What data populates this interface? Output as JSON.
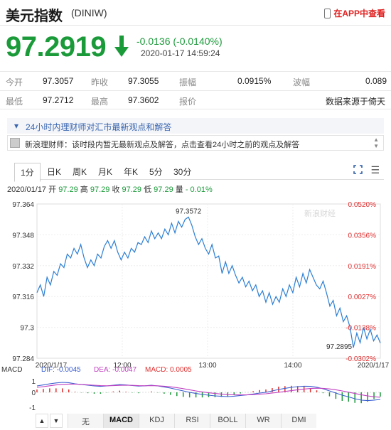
{
  "header": {
    "title": "美元指数",
    "code": "(DINIW)",
    "app_link": "在APP中查看"
  },
  "quote": {
    "price": "97.2919",
    "change": "-0.0136 (-0.0140%)",
    "timestamp": "2020-01-17  14:59:24"
  },
  "stats": {
    "open_label": "今开",
    "open": "97.3057",
    "prev_close_label": "昨收",
    "prev_close": "97.3055",
    "amplitude_label": "振幅",
    "amplitude": "0.0915%",
    "range_label": "波幅",
    "range": "0.089",
    "low_label": "最低",
    "low": "97.2712",
    "high_label": "最高",
    "high": "97.3602",
    "quote_label": "报价",
    "source": "数据来源于倚天"
  },
  "news": {
    "header": "24小时内理财师对汇市最新观点和解答",
    "item": "新浪理财师：该时段内暂无最新观点及解答，点击查看24小时之前的观点及解答"
  },
  "chart_tabs": [
    "1分",
    "日K",
    "周K",
    "月K",
    "年K",
    "5分",
    "30分"
  ],
  "summary": {
    "date": "2020/01/17",
    "open_label": "开",
    "open": "97.29",
    "high_label": "高",
    "high": "97.29",
    "close_label": "收",
    "close": "97.29",
    "low_label": "低",
    "low": "97.29",
    "vol_label": "量",
    "change": "- 0.01%"
  },
  "chart_data": {
    "type": "line",
    "title": "",
    "watermark": "新浪财经",
    "y_labels": [
      "97.364",
      "97.348",
      "97.332",
      "97.316",
      "97.3",
      "97.284"
    ],
    "pct_labels": [
      "0.0520%",
      "0.0356%",
      "0.0191%",
      "0.0027%",
      "-0.0138%",
      "-0.0302%"
    ],
    "x_labels": [
      "2020/1/17",
      "12:00",
      "13:00",
      "14:00",
      "2020/1/17"
    ],
    "ylim": [
      97.284,
      97.364
    ],
    "max_annotation": "97.3572",
    "min_annotation": "97.2895",
    "series": [
      {
        "values": [
          97.318,
          97.322,
          97.316,
          97.326,
          97.322,
          97.329,
          97.327,
          97.333,
          97.331,
          97.338,
          97.336,
          97.341,
          97.338,
          97.343,
          97.336,
          97.331,
          97.335,
          97.332,
          97.338,
          97.336,
          97.342,
          97.345,
          97.341,
          97.345,
          97.339,
          97.335,
          97.339,
          97.336,
          97.341,
          97.339,
          97.344,
          97.343,
          97.347,
          97.344,
          97.35,
          97.346,
          97.349,
          97.346,
          97.351,
          97.348,
          97.354,
          97.349,
          97.355,
          97.352,
          97.356,
          97.3572,
          97.353,
          97.347,
          97.343,
          97.346,
          97.341,
          97.338,
          97.343,
          97.336,
          97.337,
          97.328,
          97.334,
          97.328,
          97.332,
          97.327,
          97.323,
          97.326,
          97.321,
          97.324,
          97.319,
          97.322,
          97.316,
          97.319,
          97.313,
          97.318,
          97.312,
          97.316,
          97.313,
          97.32,
          97.316,
          97.322,
          97.318,
          97.326,
          97.321,
          97.328,
          97.323,
          97.33,
          97.326,
          97.322,
          97.32,
          97.324,
          97.318,
          97.311,
          97.314,
          97.306,
          97.31,
          97.303,
          97.306,
          97.3,
          97.2895,
          97.297,
          97.292,
          97.3,
          97.294,
          97.299,
          97.293,
          97.296,
          97.2919
        ]
      }
    ],
    "macd": {
      "label": "MACD",
      "dif_label": "DIF: -0.0045",
      "dea_label": "DEA: -0.0047",
      "macd_label": "MACD: 0.0005",
      "y_labels": [
        "1",
        "0",
        "-1"
      ],
      "dif": [
        0.45,
        0.52,
        0.6,
        0.66,
        0.7,
        0.68,
        0.6,
        0.55,
        0.5,
        0.45,
        0.42,
        0.45,
        0.5,
        0.55,
        0.52,
        0.48,
        0.44,
        0.46,
        0.5,
        0.45,
        0.38,
        0.3,
        0.2,
        0.1,
        0.0,
        -0.08,
        -0.15,
        -0.2,
        -0.25,
        -0.28,
        -0.3,
        -0.27,
        -0.22,
        -0.18,
        -0.12,
        -0.05,
        0.0,
        0.1,
        0.2,
        0.28,
        0.35,
        0.4,
        0.43,
        0.42,
        0.36,
        0.25,
        0.1,
        -0.05,
        -0.2,
        -0.32,
        -0.45,
        -0.55,
        -0.58,
        -0.55,
        -0.5
      ],
      "dea": [
        0.35,
        0.4,
        0.46,
        0.52,
        0.56,
        0.58,
        0.58,
        0.56,
        0.53,
        0.5,
        0.47,
        0.46,
        0.47,
        0.49,
        0.5,
        0.49,
        0.47,
        0.46,
        0.47,
        0.46,
        0.43,
        0.39,
        0.33,
        0.26,
        0.18,
        0.1,
        0.03,
        -0.03,
        -0.08,
        -0.12,
        -0.16,
        -0.18,
        -0.18,
        -0.18,
        -0.16,
        -0.13,
        -0.1,
        -0.05,
        0.0,
        0.06,
        0.12,
        0.18,
        0.23,
        0.27,
        0.29,
        0.28,
        0.24,
        0.18,
        0.1,
        0.01,
        -0.08,
        -0.17,
        -0.25,
        -0.31,
        -0.35
      ],
      "hist": [
        0.2,
        0.24,
        0.28,
        0.28,
        0.28,
        0.2,
        0.04,
        -0.02,
        -0.06,
        -0.1,
        -0.1,
        -0.02,
        0.06,
        0.12,
        0.04,
        -0.02,
        -0.06,
        0.0,
        0.06,
        -0.02,
        -0.1,
        -0.18,
        -0.26,
        -0.32,
        -0.36,
        -0.36,
        -0.36,
        -0.34,
        -0.34,
        -0.32,
        -0.28,
        -0.18,
        -0.08,
        0.0,
        0.08,
        0.16,
        0.2,
        0.3,
        0.4,
        0.44,
        0.46,
        0.44,
        0.4,
        0.3,
        0.14,
        -0.06,
        -0.28,
        -0.46,
        -0.6,
        -0.66,
        -0.74,
        -0.76,
        -0.66,
        -0.48,
        -0.3
      ]
    },
    "colors": {
      "line": "#2d7fd3",
      "dif": "#3a5fd0",
      "dea": "#c040c0",
      "up": "#e03030",
      "down": "#1b9a3a",
      "pct": "#e03030"
    }
  },
  "indicator_tabs": [
    "无",
    "MACD",
    "KDJ",
    "RSI",
    "BOLL",
    "WR",
    "DMI"
  ],
  "nav": {
    "prev": "▲",
    "next": "▼"
  }
}
